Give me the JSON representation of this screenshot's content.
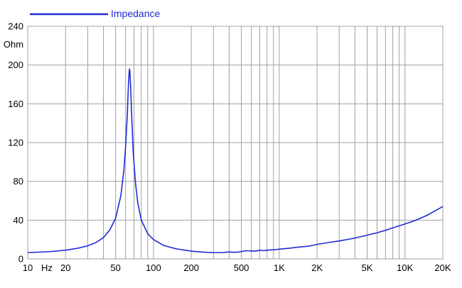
{
  "chart_data": {
    "type": "line",
    "title": "",
    "xlabel": "",
    "ylabel": "Ohm",
    "x_unit_label": "Hz",
    "x_scale": "log",
    "xlim": [
      10,
      20000
    ],
    "ylim": [
      0,
      240
    ],
    "grid": true,
    "legend_placement": "top-left",
    "x_ticks": [
      {
        "value": 10,
        "label": "10"
      },
      {
        "value": 20,
        "label": "20"
      },
      {
        "value": 50,
        "label": "50"
      },
      {
        "value": 100,
        "label": "100"
      },
      {
        "value": 200,
        "label": "200"
      },
      {
        "value": 500,
        "label": "500"
      },
      {
        "value": 1000,
        "label": "1K"
      },
      {
        "value": 2000,
        "label": "2K"
      },
      {
        "value": 5000,
        "label": "5K"
      },
      {
        "value": 10000,
        "label": "10K"
      },
      {
        "value": 20000,
        "label": "20K"
      }
    ],
    "y_ticks": [
      {
        "value": 0,
        "label": "0"
      },
      {
        "value": 40,
        "label": "40"
      },
      {
        "value": 80,
        "label": "80"
      },
      {
        "value": 120,
        "label": "120"
      },
      {
        "value": 160,
        "label": "160"
      },
      {
        "value": 200,
        "label": "200"
      },
      {
        "value": 240,
        "label": "240"
      }
    ],
    "series": [
      {
        "name": "Impedance",
        "color": "#1f2bd6",
        "points": [
          [
            10,
            6.5
          ],
          [
            15,
            7.5
          ],
          [
            20,
            9
          ],
          [
            25,
            11
          ],
          [
            30,
            13.5
          ],
          [
            35,
            17
          ],
          [
            40,
            22
          ],
          [
            45,
            30
          ],
          [
            50,
            42
          ],
          [
            55,
            65
          ],
          [
            58,
            90
          ],
          [
            60,
            115
          ],
          [
            62,
            150
          ],
          [
            63,
            175
          ],
          [
            64,
            192
          ],
          [
            64.5,
            196
          ],
          [
            65,
            193
          ],
          [
            66,
            175
          ],
          [
            67,
            150
          ],
          [
            69,
            110
          ],
          [
            72,
            78
          ],
          [
            75,
            58
          ],
          [
            80,
            40
          ],
          [
            90,
            26
          ],
          [
            100,
            20
          ],
          [
            120,
            14
          ],
          [
            150,
            10.5
          ],
          [
            200,
            8
          ],
          [
            250,
            7
          ],
          [
            300,
            6.5
          ],
          [
            350,
            6.5
          ],
          [
            400,
            7.2
          ],
          [
            430,
            6.8
          ],
          [
            470,
            7
          ],
          [
            550,
            8.5
          ],
          [
            600,
            8.2
          ],
          [
            650,
            8
          ],
          [
            700,
            9
          ],
          [
            750,
            8.5
          ],
          [
            800,
            9
          ],
          [
            900,
            9.5
          ],
          [
            1000,
            10
          ],
          [
            1200,
            11
          ],
          [
            1500,
            12.5
          ],
          [
            1700,
            13
          ],
          [
            2000,
            15
          ],
          [
            2500,
            17
          ],
          [
            3000,
            18.5
          ],
          [
            4000,
            21.5
          ],
          [
            5000,
            24.5
          ],
          [
            6000,
            27
          ],
          [
            7000,
            29.5
          ],
          [
            8000,
            32
          ],
          [
            10000,
            36
          ],
          [
            12000,
            39.5
          ],
          [
            15000,
            45
          ],
          [
            17000,
            49
          ],
          [
            20000,
            54
          ]
        ]
      }
    ]
  }
}
